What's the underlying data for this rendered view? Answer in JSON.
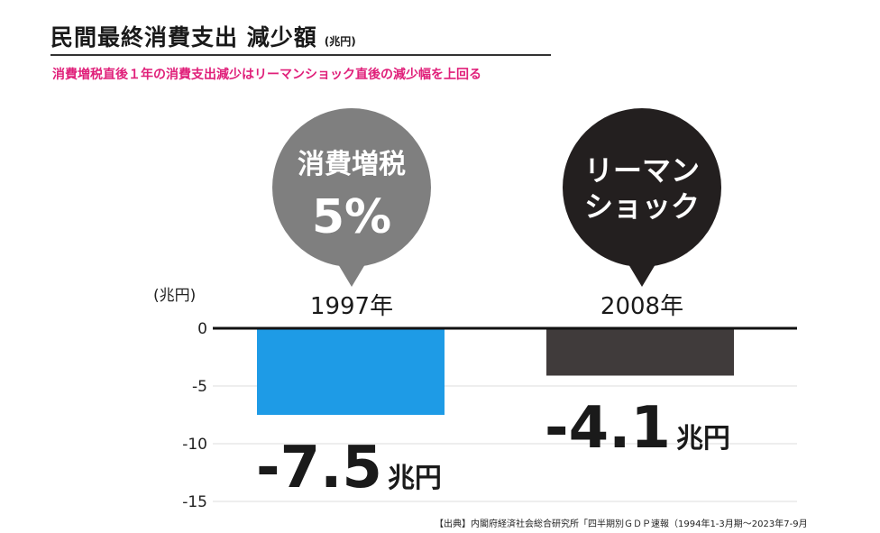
{
  "header": {
    "title": "民間最終消費支出 減少額",
    "title_unit": "(兆円)",
    "subtitle": "消費増税直後１年の消費支出減少はリーマンショック直後の減少幅を上回る"
  },
  "bubbles": [
    {
      "line1": "消費増税",
      "line2": "5%",
      "color": "#7f7f7f"
    },
    {
      "line1": "リーマン",
      "line2": "ショック",
      "color": "#231f1f"
    }
  ],
  "chart_data": {
    "type": "bar",
    "categories": [
      "1997年",
      "2008年"
    ],
    "values": [
      -7.5,
      -4.1
    ],
    "value_labels": [
      "-7.5",
      "-4.1"
    ],
    "value_unit": "兆円",
    "colors": [
      "#1e9be6",
      "#403b3b"
    ],
    "ylabel": "(兆円)",
    "yticks": [
      "0",
      "-5",
      "-10",
      "-15"
    ],
    "ylim": [
      -15,
      0
    ],
    "grid": true
  },
  "source": "【出典】内閣府経済社会総合研究所「四半期別ＧＤＰ速報（1994年1-3月期〜2023年7-9月"
}
